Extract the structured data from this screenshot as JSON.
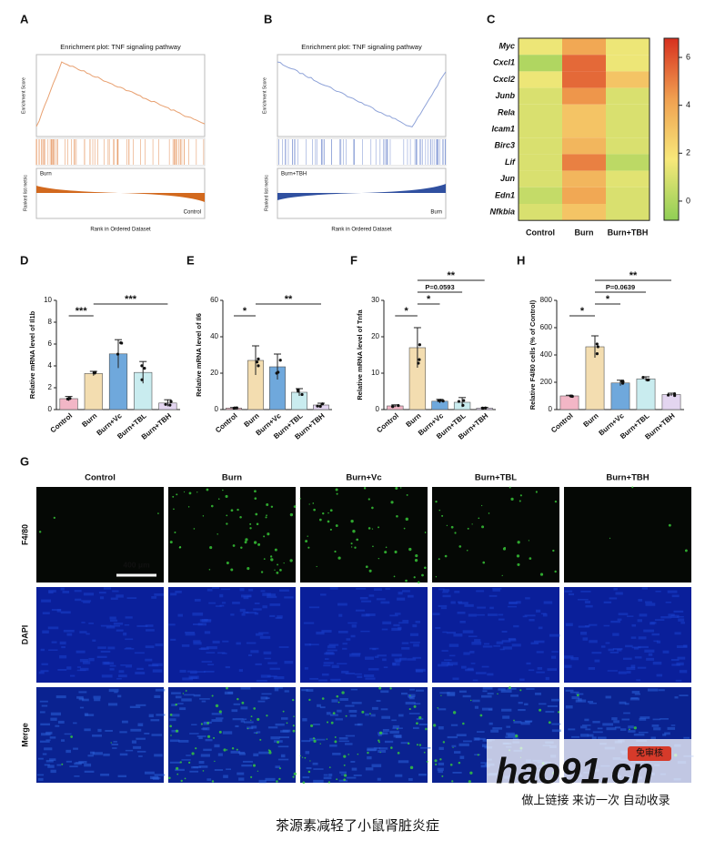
{
  "panel_labels": [
    "A",
    "B",
    "C",
    "D",
    "E",
    "F",
    "H",
    "G"
  ],
  "gsea": [
    {
      "title": "Enrichment plot: TNF signaling pathway",
      "y_label": "Enrichment Score",
      "metric_label": "Ranked list metric",
      "x_label": "Rank in Ordered Dataset",
      "top_group": "Burn",
      "bottom_group": "Control"
    },
    {
      "title": "Enrichment plot: TNF signaling pathway",
      "y_label": "Enrichment Score",
      "metric_label": "Ranked list metric",
      "x_label": "Rank in Ordered Dataset",
      "top_group": "Burn+TBH",
      "bottom_group": "Burn"
    }
  ],
  "chart_data": [
    {
      "type": "heatmap",
      "rows": [
        "Myc",
        "Cxcl1",
        "Cxcl2",
        "Junb",
        "Rela",
        "Icam1",
        "Birc3",
        "Lif",
        "Jun",
        "Edn1",
        "Nfkbia"
      ],
      "columns": [
        "Control",
        "Burn",
        "Burn+TBH"
      ],
      "values": [
        [
          1.5,
          4,
          1.5
        ],
        [
          0,
          5.5,
          1.5
        ],
        [
          1.5,
          5.5,
          3
        ],
        [
          1,
          4.5,
          1
        ],
        [
          1,
          3,
          1
        ],
        [
          1,
          3,
          1
        ],
        [
          1,
          3.5,
          1
        ],
        [
          1,
          5,
          0.3
        ],
        [
          1,
          3.5,
          1.2
        ],
        [
          0.5,
          4,
          1
        ],
        [
          1,
          3,
          1
        ]
      ],
      "colorbar_lim": [
        -0.8,
        6.8
      ],
      "colorbar_ticks": [
        0,
        2,
        4,
        6
      ],
      "colors": [
        "#8fce55",
        "#f7e87a",
        "#f0a050",
        "#d7301f"
      ]
    },
    {
      "type": "bar",
      "y_label": "Relative mRNA level of Il1b",
      "categories": [
        "Control",
        "Burn",
        "Burn+Vc",
        "Burn+TBL",
        "Burn+TBH"
      ],
      "values": [
        1.0,
        3.3,
        5.1,
        3.4,
        0.6
      ],
      "errors": [
        0.2,
        0.2,
        1.3,
        1.0,
        0.3
      ],
      "colors": [
        "#f2b6c6",
        "#f3ddb0",
        "#6fa8dc",
        "#c9ecef",
        "#e3d5f0"
      ],
      "ylim": [
        0,
        10
      ],
      "yticks": [
        0,
        2,
        4,
        6,
        8,
        10
      ],
      "brackets": [
        {
          "label": "***",
          "from": "Control",
          "to": "Burn"
        },
        {
          "label": "***",
          "from": "Burn",
          "to": "Burn+TBH"
        }
      ]
    },
    {
      "type": "bar",
      "y_label": "Relative mRNA level of Il6",
      "categories": [
        "Control",
        "Burn",
        "Burn+Vc",
        "Burn+TBL",
        "Burn+TBH"
      ],
      "values": [
        0.8,
        27,
        23.5,
        9.5,
        2.5
      ],
      "errors": [
        0.3,
        8,
        7,
        2,
        1
      ],
      "colors": [
        "#f2b6c6",
        "#f3ddb0",
        "#6fa8dc",
        "#c9ecef",
        "#e3d5f0"
      ],
      "ylim": [
        0,
        60
      ],
      "yticks": [
        0,
        20,
        40,
        60
      ],
      "brackets": [
        {
          "label": "*",
          "from": "Control",
          "to": "Burn"
        },
        {
          "label": "**",
          "from": "Burn",
          "to": "Burn+TBH"
        }
      ]
    },
    {
      "type": "bar",
      "y_label": "Relative mRNA level of Tnfa",
      "categories": [
        "Control",
        "Burn",
        "Burn+Vc",
        "Burn+TBL",
        "Burn+TBH"
      ],
      "values": [
        1,
        17,
        2.3,
        2,
        0.4
      ],
      "errors": [
        0.3,
        5.5,
        0.5,
        1.3,
        0.2
      ],
      "colors": [
        "#f2b6c6",
        "#f3ddb0",
        "#6fa8dc",
        "#c9ecef",
        "#e3d5f0"
      ],
      "ylim": [
        0,
        30
      ],
      "yticks": [
        0,
        10,
        20,
        30
      ],
      "brackets": [
        {
          "label": "*",
          "from": "Control",
          "to": "Burn"
        },
        {
          "label": "*",
          "from": "Burn",
          "to": "Burn+Vc"
        },
        {
          "label": "P=0.0593",
          "from": "Burn",
          "to": "Burn+TBL"
        },
        {
          "label": "**",
          "from": "Burn",
          "to": "Burn+TBH"
        }
      ]
    },
    {
      "type": "bar",
      "y_label": "Relative F4/80 cells (% of Control)",
      "categories": [
        "Control",
        "Burn",
        "Burn+Vc",
        "Burn+TBL",
        "Burn+TBH"
      ],
      "values": [
        100,
        460,
        195,
        225,
        110
      ],
      "errors": [
        5,
        80,
        20,
        15,
        10
      ],
      "colors": [
        "#f2b6c6",
        "#f3ddb0",
        "#6fa8dc",
        "#c9ecef",
        "#e3d5f0"
      ],
      "ylim": [
        0,
        800
      ],
      "yticks": [
        0,
        200,
        400,
        600,
        800
      ],
      "brackets": [
        {
          "label": "*",
          "from": "Control",
          "to": "Burn"
        },
        {
          "label": "*",
          "from": "Burn",
          "to": "Burn+Vc"
        },
        {
          "label": "P=0.0639",
          "from": "Burn",
          "to": "Burn+TBL"
        },
        {
          "label": "**",
          "from": "Burn",
          "to": "Burn+TBH"
        }
      ]
    }
  ],
  "images": {
    "columns": [
      "Control",
      "Burn",
      "Burn+Vc",
      "Burn+TBL",
      "Burn+TBH"
    ],
    "rows": [
      "F4/80",
      "DAPI",
      "Merge"
    ],
    "scale_bar": "400 μm"
  },
  "caption": "茶源素减轻了小鼠肾脏炎症",
  "watermark": {
    "logo": "hao91.cn",
    "badge": "免审核",
    "slogan": "做上链接 来访一次 自动收录"
  }
}
